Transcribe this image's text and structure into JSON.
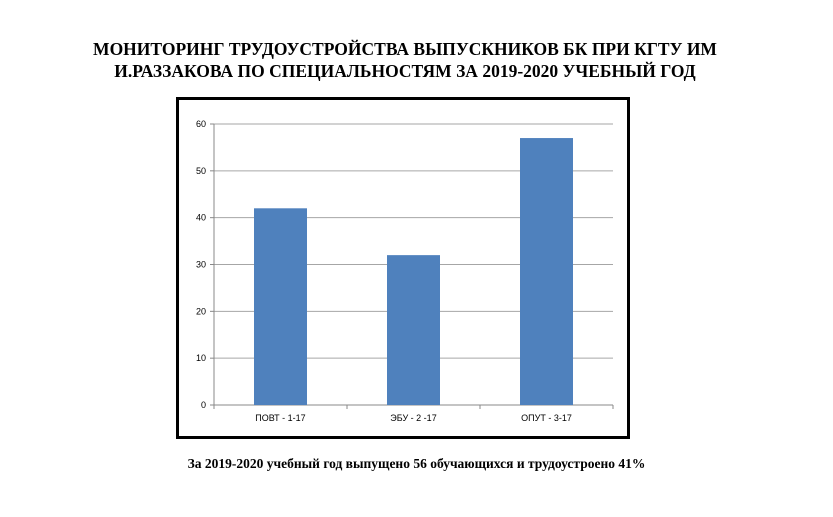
{
  "title": {
    "line1": "МОНИТОРИНГ ТРУДОУСТРОЙСТВА ВЫПУСКНИКОВ БК ПРИ КГТУ ИМ",
    "line2": "И.РАЗЗАКОВА ПО СПЕЦИАЛЬНОСТЯМ ЗА 2019-2020 УЧЕБНЫЙ ГОД"
  },
  "caption": "За 2019-2020 учебный год выпущено 56 обучающихся и трудоустроено 41%",
  "chart_data": {
    "type": "bar",
    "categories": [
      "ПОВТ - 1-17",
      "ЭБУ - 2 -17",
      "ОПУТ - 3-17"
    ],
    "values": [
      42,
      32,
      57
    ],
    "ylim": [
      0,
      60
    ],
    "yticks": [
      0,
      10,
      20,
      30,
      40,
      50,
      60
    ],
    "grid": true,
    "legend": "none",
    "bar_color": "#4f81bd",
    "grid_color": "#a6a6a6"
  }
}
